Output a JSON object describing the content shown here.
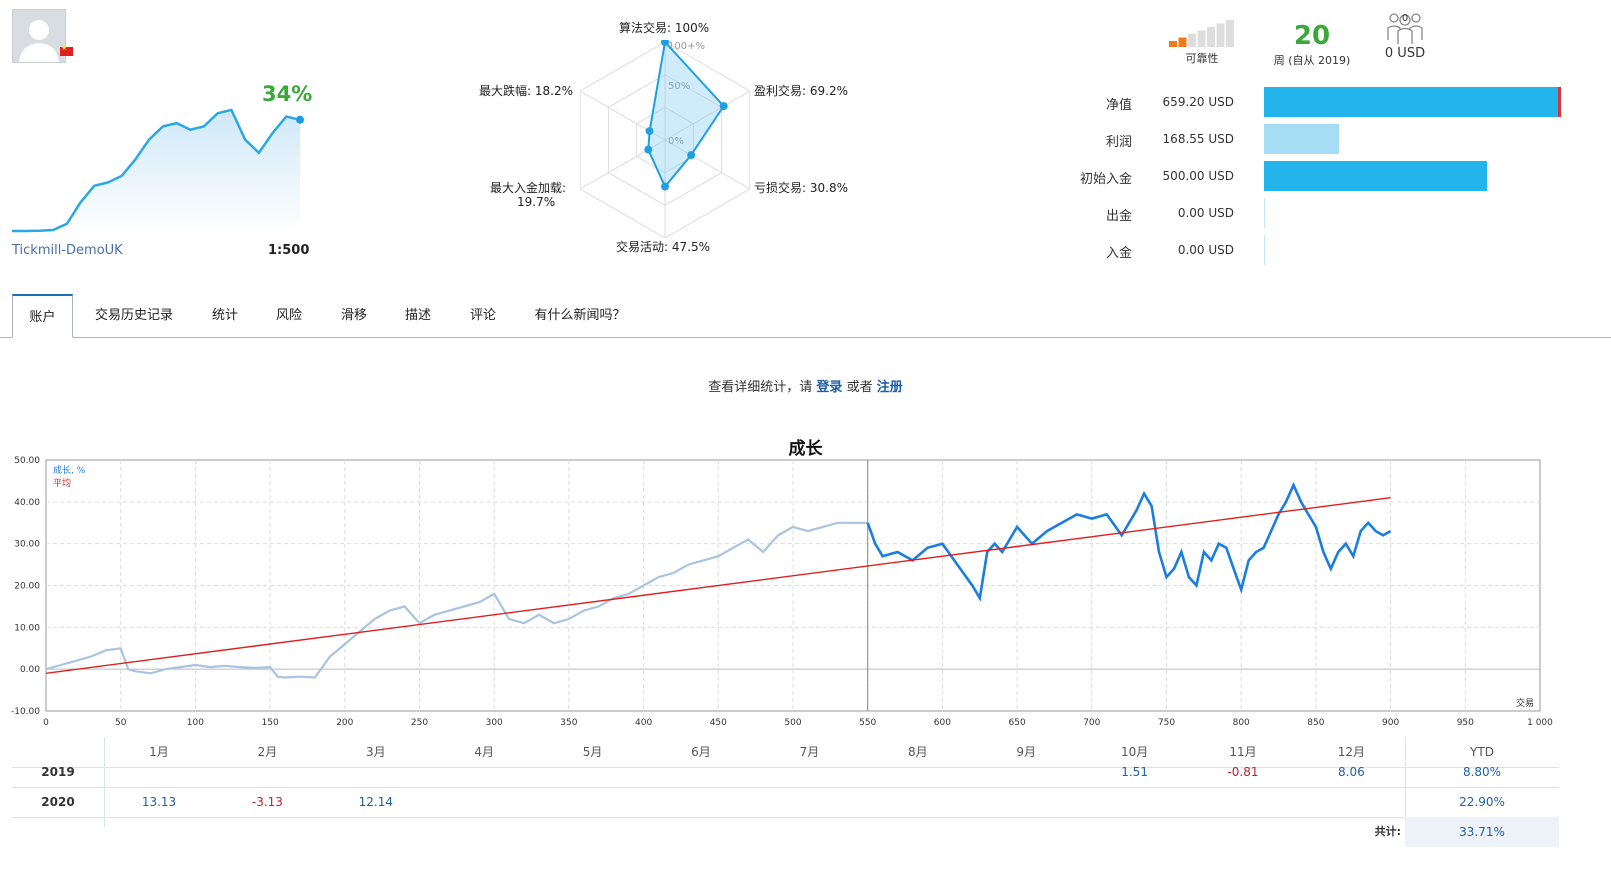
{
  "profile": {
    "flag": "china-flag",
    "growth_pct": "34%",
    "broker": "Tickmill-DemoUK",
    "leverage": "1:500",
    "mini_growth": [
      0.3,
      0.3,
      0.4,
      0.6,
      2.5,
      9,
      14,
      15,
      17,
      22,
      28,
      32,
      33,
      31,
      32,
      36,
      37,
      28,
      24,
      30,
      35,
      34
    ]
  },
  "radar": {
    "labels": {
      "algo": "算法交易: 100%",
      "profit": "盈利交易: 69.2%",
      "loss": "亏损交易: 30.8%",
      "activity": "交易活动: 47.5%",
      "max_load": "最大入金加载:",
      "max_load_val": "19.7%",
      "drawdown": "最大跌幅: 18.2%"
    },
    "scale": {
      "outer": "100+%",
      "mid": "50%",
      "inner": "0%"
    },
    "values": [
      100,
      69.2,
      30.8,
      47.5,
      19.7,
      18.2
    ]
  },
  "stats": {
    "reliability_label": "可靠性",
    "reliability_level": 0.33,
    "weeks": "20",
    "weeks_label": "周 (自从 2019)",
    "subscribers_count": "0",
    "subscribers_value": "0 USD"
  },
  "financials": [
    {
      "label": "净值",
      "value": "659.20 USD",
      "amount": 659.2,
      "color": "#24b4ec"
    },
    {
      "label": "利润",
      "value": "168.55 USD",
      "amount": 168.55,
      "color": "#a6dcf4"
    },
    {
      "label": "初始入金",
      "value": "500.00 USD",
      "amount": 500.0,
      "color": "#24b4ec"
    },
    {
      "label": "出金",
      "value": "0.00 USD",
      "amount": 0,
      "color": "#24b4ec"
    },
    {
      "label": "入金",
      "value": "0.00 USD",
      "amount": 0,
      "color": "#24b4ec"
    }
  ],
  "tabs": [
    "账户",
    "交易历史记录",
    "统计",
    "风险",
    "滑移",
    "描述",
    "评论",
    "有什么新闻吗？"
  ],
  "login": {
    "prefix": "查看详细统计，请 ",
    "login_link": "登录",
    "middle": " 或者 ",
    "register_link": "注册"
  },
  "chart_data": {
    "type": "line",
    "title": "成长",
    "legend": [
      "成长, %",
      "平均"
    ],
    "xlabel": "交易",
    "xlim": [
      0,
      1000
    ],
    "ylim": [
      -10,
      50
    ],
    "y_ticks": [
      "50.00",
      "40.00",
      "30.00",
      "20.00",
      "10.00",
      "0.00",
      "-10.00"
    ],
    "x_ticks": [
      "0",
      "50",
      "100",
      "150",
      "200",
      "250",
      "300",
      "350",
      "400",
      "450",
      "500",
      "550",
      "600",
      "650",
      "700",
      "750",
      "800",
      "850",
      "900",
      "950",
      "1 000"
    ],
    "divider_x": 550,
    "series_history": {
      "name": "成长, %",
      "x": [
        0,
        10,
        20,
        30,
        40,
        50,
        55,
        60,
        70,
        80,
        90,
        100,
        110,
        120,
        130,
        140,
        150,
        155,
        160,
        170,
        180,
        190,
        200,
        210,
        220,
        230,
        240,
        250,
        260,
        270,
        280,
        290,
        300,
        310,
        320,
        330,
        340,
        350,
        360,
        370,
        380,
        390,
        400,
        410,
        420,
        430,
        440,
        450,
        460,
        470,
        480,
        490,
        500,
        510,
        520,
        530,
        540,
        550
      ],
      "y": [
        0,
        1,
        2,
        3,
        4.5,
        5,
        0,
        -0.5,
        -1,
        0,
        0.5,
        1,
        0.5,
        0.8,
        0.5,
        0.3,
        0.5,
        -1.8,
        -2,
        -1.8,
        -2,
        3,
        6,
        9,
        12,
        14,
        15,
        11,
        13,
        14,
        15,
        16,
        18,
        12,
        11,
        13,
        11,
        12,
        14,
        15,
        17,
        18,
        20,
        22,
        23,
        25,
        26,
        27,
        29,
        31,
        28,
        32,
        34,
        33,
        34,
        35,
        35,
        35
      ]
    },
    "series_recent": {
      "name": "成长, %",
      "x": [
        550,
        555,
        560,
        570,
        580,
        590,
        600,
        610,
        620,
        625,
        630,
        635,
        640,
        650,
        660,
        670,
        680,
        690,
        700,
        710,
        720,
        730,
        735,
        740,
        745,
        750,
        755,
        760,
        765,
        770,
        775,
        780,
        785,
        790,
        795,
        800,
        805,
        810,
        815,
        820,
        825,
        830,
        835,
        840,
        845,
        850,
        855,
        860,
        865,
        870,
        875,
        880,
        885,
        890,
        895,
        900
      ],
      "y": [
        35,
        30,
        27,
        28,
        26,
        29,
        30,
        25,
        20,
        17,
        28,
        30,
        28,
        34,
        30,
        33,
        35,
        37,
        36,
        37,
        32,
        38,
        42,
        39,
        28,
        22,
        24,
        28,
        22,
        20,
        28,
        26,
        30,
        29,
        24,
        19,
        26,
        28,
        29,
        33,
        37,
        40,
        44,
        40,
        37,
        34,
        28,
        24,
        28,
        30,
        27,
        33,
        35,
        33,
        32,
        33
      ]
    },
    "series_average": {
      "name": "平均",
      "x": [
        0,
        900
      ],
      "y": [
        -1,
        41
      ]
    }
  },
  "monthly": {
    "months": [
      "1月",
      "2月",
      "3月",
      "4月",
      "5月",
      "6月",
      "7月",
      "8月",
      "9月",
      "10月",
      "11月",
      "12月"
    ],
    "ytd_label": "YTD",
    "total_label": "共计:",
    "total_value": "33.71%",
    "rows": [
      {
        "year": "2019",
        "values": [
          "",
          "",
          "",
          "",
          "",
          "",
          "",
          "",
          "",
          "1.51",
          "-0.81",
          "8.06"
        ],
        "ytd": "8.80%"
      },
      {
        "year": "2020",
        "values": [
          "13.13",
          "-3.13",
          "12.14",
          "",
          "",
          "",
          "",
          "",
          "",
          "",
          "",
          ""
        ],
        "ytd": "22.90%"
      }
    ]
  }
}
